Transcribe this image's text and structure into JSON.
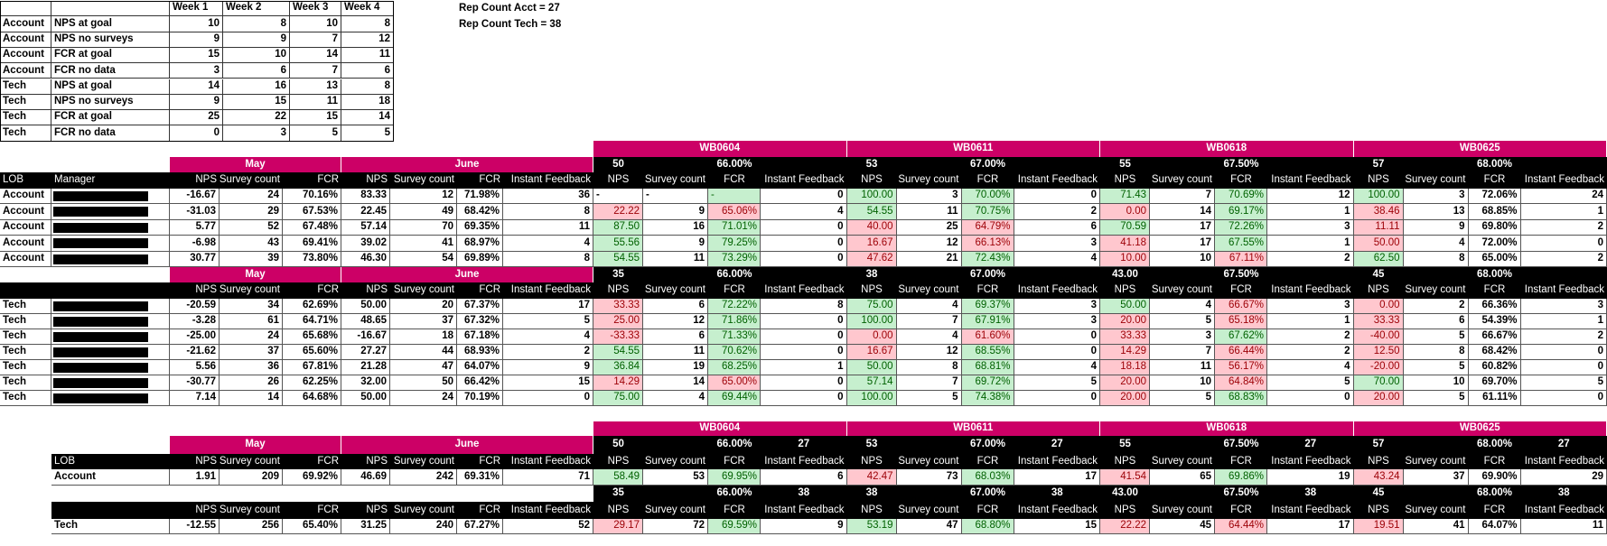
{
  "colors": {
    "header_pink": "#cc0066",
    "good_fill": "#c6efce",
    "good_text": "#006100",
    "bad_fill": "#ffc7ce",
    "bad_text": "#9c0006"
  },
  "top_table": {
    "headers": [
      "",
      "",
      "Week 1",
      "Week 2",
      "Week 3",
      "Week 4"
    ],
    "rows": [
      {
        "lob": "Account",
        "metric": "NPS at goal",
        "values": [
          "10",
          "8",
          "10",
          "8"
        ]
      },
      {
        "lob": "Account",
        "metric": "NPS no surveys",
        "values": [
          "9",
          "9",
          "7",
          "12"
        ]
      },
      {
        "lob": "Account",
        "metric": "FCR at goal",
        "values": [
          "15",
          "10",
          "14",
          "11"
        ]
      },
      {
        "lob": "Account",
        "metric": "FCR no data",
        "values": [
          "3",
          "6",
          "7",
          "6"
        ]
      },
      {
        "lob": "Tech",
        "metric": "NPS at goal",
        "values": [
          "14",
          "16",
          "13",
          "8"
        ]
      },
      {
        "lob": "Tech",
        "metric": "NPS no surveys",
        "values": [
          "9",
          "15",
          "11",
          "18"
        ]
      },
      {
        "lob": "Tech",
        "metric": "FCR at goal",
        "values": [
          "25",
          "22",
          "15",
          "14"
        ]
      },
      {
        "lob": "Tech",
        "metric": "FCR no data",
        "values": [
          "0",
          "3",
          "5",
          "5"
        ]
      }
    ]
  },
  "rep_counts": [
    "Rep Count Acct = 27",
    "Rep Count Tech = 38"
  ],
  "months": [
    "May",
    "June"
  ],
  "weeks": [
    "WB0604",
    "WB0611",
    "WB0618",
    "WB0625"
  ],
  "labels": {
    "lob": "LOB",
    "manager": "Manager",
    "nps": "NPS",
    "survey": "Survey count",
    "fcr": "FCR",
    "instant": "Instant Feedback"
  },
  "account_section": {
    "targets": [
      {
        "nps": "50",
        "fcr": "66.00%"
      },
      {
        "nps": "53",
        "fcr": "67.00%"
      },
      {
        "nps": "55",
        "fcr": "67.50%"
      },
      {
        "nps": "57",
        "fcr": "68.00%"
      }
    ],
    "rows": [
      {
        "lob": "Account",
        "may": {
          "nps": "-16.67",
          "survey": "24",
          "fcr": "70.16%"
        },
        "june": {
          "nps": "83.33",
          "survey": "12",
          "fcr": "71.98%",
          "instant": "36"
        },
        "weeks": [
          {
            "nps": "-",
            "nps_flag": "",
            "survey": "-",
            "fcr": "-",
            "fcr_flag": "green",
            "instant": "0"
          },
          {
            "nps": "100.00",
            "nps_flag": "green",
            "survey": "3",
            "fcr": "70.00%",
            "fcr_flag": "green",
            "instant": "0"
          },
          {
            "nps": "71.43",
            "nps_flag": "green",
            "survey": "7",
            "fcr": "70.69%",
            "fcr_flag": "green",
            "instant": "12"
          },
          {
            "nps": "100.00",
            "nps_flag": "green",
            "survey": "3",
            "fcr": "72.06%",
            "fcr_flag": "",
            "instant": "24"
          }
        ]
      },
      {
        "lob": "Account",
        "may": {
          "nps": "-31.03",
          "survey": "29",
          "fcr": "67.53%"
        },
        "june": {
          "nps": "22.45",
          "survey": "49",
          "fcr": "68.42%",
          "instant": "8"
        },
        "weeks": [
          {
            "nps": "22.22",
            "nps_flag": "red",
            "survey": "9",
            "fcr": "65.06%",
            "fcr_flag": "red",
            "instant": "4"
          },
          {
            "nps": "54.55",
            "nps_flag": "green",
            "survey": "11",
            "fcr": "70.75%",
            "fcr_flag": "green",
            "instant": "2"
          },
          {
            "nps": "0.00",
            "nps_flag": "red",
            "survey": "14",
            "fcr": "69.17%",
            "fcr_flag": "green",
            "instant": "1"
          },
          {
            "nps": "38.46",
            "nps_flag": "red",
            "survey": "13",
            "fcr": "68.85%",
            "fcr_flag": "",
            "instant": "1"
          }
        ]
      },
      {
        "lob": "Account",
        "may": {
          "nps": "5.77",
          "survey": "52",
          "fcr": "67.48%"
        },
        "june": {
          "nps": "57.14",
          "survey": "70",
          "fcr": "69.35%",
          "instant": "11"
        },
        "weeks": [
          {
            "nps": "87.50",
            "nps_flag": "green",
            "survey": "16",
            "fcr": "71.01%",
            "fcr_flag": "green",
            "instant": "0"
          },
          {
            "nps": "40.00",
            "nps_flag": "red",
            "survey": "25",
            "fcr": "64.79%",
            "fcr_flag": "red",
            "instant": "6"
          },
          {
            "nps": "70.59",
            "nps_flag": "green",
            "survey": "17",
            "fcr": "72.26%",
            "fcr_flag": "green",
            "instant": "3"
          },
          {
            "nps": "11.11",
            "nps_flag": "red",
            "survey": "9",
            "fcr": "69.80%",
            "fcr_flag": "",
            "instant": "2"
          }
        ]
      },
      {
        "lob": "Account",
        "may": {
          "nps": "-6.98",
          "survey": "43",
          "fcr": "69.41%"
        },
        "june": {
          "nps": "39.02",
          "survey": "41",
          "fcr": "68.97%",
          "instant": "4"
        },
        "weeks": [
          {
            "nps": "55.56",
            "nps_flag": "green",
            "survey": "9",
            "fcr": "79.25%",
            "fcr_flag": "green",
            "instant": "0"
          },
          {
            "nps": "16.67",
            "nps_flag": "red",
            "survey": "12",
            "fcr": "66.13%",
            "fcr_flag": "red",
            "instant": "3"
          },
          {
            "nps": "41.18",
            "nps_flag": "red",
            "survey": "17",
            "fcr": "67.55%",
            "fcr_flag": "green",
            "instant": "1"
          },
          {
            "nps": "50.00",
            "nps_flag": "red",
            "survey": "4",
            "fcr": "72.00%",
            "fcr_flag": "",
            "instant": "0"
          }
        ]
      },
      {
        "lob": "Account",
        "may": {
          "nps": "30.77",
          "survey": "39",
          "fcr": "73.80%"
        },
        "june": {
          "nps": "46.30",
          "survey": "54",
          "fcr": "69.89%",
          "instant": "8"
        },
        "weeks": [
          {
            "nps": "54.55",
            "nps_flag": "green",
            "survey": "11",
            "fcr": "73.29%",
            "fcr_flag": "green",
            "instant": "0"
          },
          {
            "nps": "47.62",
            "nps_flag": "red",
            "survey": "21",
            "fcr": "72.43%",
            "fcr_flag": "green",
            "instant": "4"
          },
          {
            "nps": "10.00",
            "nps_flag": "red",
            "survey": "10",
            "fcr": "67.11%",
            "fcr_flag": "red",
            "instant": "2"
          },
          {
            "nps": "62.50",
            "nps_flag": "green",
            "survey": "8",
            "fcr": "65.00%",
            "fcr_flag": "",
            "instant": "2"
          }
        ]
      }
    ]
  },
  "tech_section": {
    "targets": [
      {
        "nps": "35",
        "fcr": "66.00%"
      },
      {
        "nps": "38",
        "fcr": "67.00%"
      },
      {
        "nps": "43.00",
        "fcr": "67.50%"
      },
      {
        "nps": "45",
        "fcr": "68.00%"
      }
    ],
    "rows": [
      {
        "lob": "Tech",
        "may": {
          "nps": "-20.59",
          "survey": "34",
          "fcr": "62.69%"
        },
        "june": {
          "nps": "50.00",
          "survey": "20",
          "fcr": "67.37%",
          "instant": "17"
        },
        "weeks": [
          {
            "nps": "33.33",
            "nps_flag": "red",
            "survey": "6",
            "fcr": "72.22%",
            "fcr_flag": "green",
            "instant": "8"
          },
          {
            "nps": "75.00",
            "nps_flag": "green",
            "survey": "4",
            "fcr": "69.37%",
            "fcr_flag": "green",
            "instant": "3"
          },
          {
            "nps": "50.00",
            "nps_flag": "green",
            "survey": "4",
            "fcr": "66.67%",
            "fcr_flag": "red",
            "instant": "3"
          },
          {
            "nps": "0.00",
            "nps_flag": "red",
            "survey": "2",
            "fcr": "66.36%",
            "fcr_flag": "",
            "instant": "3"
          }
        ]
      },
      {
        "lob": "Tech",
        "may": {
          "nps": "-3.28",
          "survey": "61",
          "fcr": "64.71%"
        },
        "june": {
          "nps": "48.65",
          "survey": "37",
          "fcr": "67.32%",
          "instant": "5"
        },
        "weeks": [
          {
            "nps": "25.00",
            "nps_flag": "red",
            "survey": "12",
            "fcr": "71.86%",
            "fcr_flag": "green",
            "instant": "0"
          },
          {
            "nps": "100.00",
            "nps_flag": "green",
            "survey": "7",
            "fcr": "67.91%",
            "fcr_flag": "green",
            "instant": "3"
          },
          {
            "nps": "20.00",
            "nps_flag": "red",
            "survey": "5",
            "fcr": "65.18%",
            "fcr_flag": "red",
            "instant": "1"
          },
          {
            "nps": "33.33",
            "nps_flag": "red",
            "survey": "6",
            "fcr": "54.39%",
            "fcr_flag": "",
            "instant": "1"
          }
        ]
      },
      {
        "lob": "Tech",
        "may": {
          "nps": "-25.00",
          "survey": "24",
          "fcr": "65.68%"
        },
        "june": {
          "nps": "-16.67",
          "survey": "18",
          "fcr": "67.18%",
          "instant": "4"
        },
        "weeks": [
          {
            "nps": "-33.33",
            "nps_flag": "red",
            "survey": "6",
            "fcr": "71.33%",
            "fcr_flag": "green",
            "instant": "0"
          },
          {
            "nps": "0.00",
            "nps_flag": "red",
            "survey": "4",
            "fcr": "61.60%",
            "fcr_flag": "red",
            "instant": "0"
          },
          {
            "nps": "33.33",
            "nps_flag": "red",
            "survey": "3",
            "fcr": "67.62%",
            "fcr_flag": "green",
            "instant": "2"
          },
          {
            "nps": "-40.00",
            "nps_flag": "red",
            "survey": "5",
            "fcr": "66.67%",
            "fcr_flag": "",
            "instant": "2"
          }
        ]
      },
      {
        "lob": "Tech",
        "may": {
          "nps": "-21.62",
          "survey": "37",
          "fcr": "65.60%"
        },
        "june": {
          "nps": "27.27",
          "survey": "44",
          "fcr": "68.93%",
          "instant": "2"
        },
        "weeks": [
          {
            "nps": "54.55",
            "nps_flag": "green",
            "survey": "11",
            "fcr": "70.62%",
            "fcr_flag": "green",
            "instant": "0"
          },
          {
            "nps": "16.67",
            "nps_flag": "red",
            "survey": "12",
            "fcr": "68.55%",
            "fcr_flag": "green",
            "instant": "0"
          },
          {
            "nps": "14.29",
            "nps_flag": "red",
            "survey": "7",
            "fcr": "66.44%",
            "fcr_flag": "red",
            "instant": "2"
          },
          {
            "nps": "12.50",
            "nps_flag": "red",
            "survey": "8",
            "fcr": "68.42%",
            "fcr_flag": "",
            "instant": "0"
          }
        ]
      },
      {
        "lob": "Tech",
        "may": {
          "nps": "5.56",
          "survey": "36",
          "fcr": "67.81%"
        },
        "june": {
          "nps": "21.28",
          "survey": "47",
          "fcr": "64.07%",
          "instant": "9"
        },
        "weeks": [
          {
            "nps": "36.84",
            "nps_flag": "green",
            "survey": "19",
            "fcr": "68.25%",
            "fcr_flag": "green",
            "instant": "1"
          },
          {
            "nps": "50.00",
            "nps_flag": "green",
            "survey": "8",
            "fcr": "68.81%",
            "fcr_flag": "green",
            "instant": "4"
          },
          {
            "nps": "18.18",
            "nps_flag": "red",
            "survey": "11",
            "fcr": "56.17%",
            "fcr_flag": "red",
            "instant": "4"
          },
          {
            "nps": "-20.00",
            "nps_flag": "red",
            "survey": "5",
            "fcr": "60.82%",
            "fcr_flag": "",
            "instant": "0"
          }
        ]
      },
      {
        "lob": "Tech",
        "may": {
          "nps": "-30.77",
          "survey": "26",
          "fcr": "62.25%"
        },
        "june": {
          "nps": "32.00",
          "survey": "50",
          "fcr": "66.42%",
          "instant": "15"
        },
        "weeks": [
          {
            "nps": "14.29",
            "nps_flag": "red",
            "survey": "14",
            "fcr": "65.00%",
            "fcr_flag": "red",
            "instant": "0"
          },
          {
            "nps": "57.14",
            "nps_flag": "green",
            "survey": "7",
            "fcr": "69.72%",
            "fcr_flag": "green",
            "instant": "5"
          },
          {
            "nps": "20.00",
            "nps_flag": "red",
            "survey": "10",
            "fcr": "64.84%",
            "fcr_flag": "red",
            "instant": "5"
          },
          {
            "nps": "70.00",
            "nps_flag": "green",
            "survey": "10",
            "fcr": "69.70%",
            "fcr_flag": "",
            "instant": "5"
          }
        ]
      },
      {
        "lob": "Tech",
        "may": {
          "nps": "7.14",
          "survey": "14",
          "fcr": "64.68%"
        },
        "june": {
          "nps": "50.00",
          "survey": "24",
          "fcr": "70.19%",
          "instant": "0"
        },
        "weeks": [
          {
            "nps": "75.00",
            "nps_flag": "green",
            "survey": "4",
            "fcr": "69.44%",
            "fcr_flag": "green",
            "instant": "0"
          },
          {
            "nps": "100.00",
            "nps_flag": "green",
            "survey": "5",
            "fcr": "74.38%",
            "fcr_flag": "green",
            "instant": "0"
          },
          {
            "nps": "20.00",
            "nps_flag": "red",
            "survey": "5",
            "fcr": "68.83%",
            "fcr_flag": "green",
            "instant": "0"
          },
          {
            "nps": "20.00",
            "nps_flag": "red",
            "survey": "5",
            "fcr": "61.11%",
            "fcr_flag": "",
            "instant": "0"
          }
        ]
      }
    ]
  },
  "summary": {
    "account": {
      "targets": [
        {
          "nps": "50",
          "fcr": "66.00%",
          "reps": "27"
        },
        {
          "nps": "53",
          "fcr": "67.00%",
          "reps": "27"
        },
        {
          "nps": "55",
          "fcr": "67.50%",
          "reps": "27"
        },
        {
          "nps": "57",
          "fcr": "68.00%",
          "reps": "27"
        }
      ],
      "row": {
        "lob": "Account",
        "may": {
          "nps": "1.91",
          "survey": "209",
          "fcr": "69.92%"
        },
        "june": {
          "nps": "46.69",
          "survey": "242",
          "fcr": "69.31%",
          "instant": "71"
        },
        "weeks": [
          {
            "nps": "58.49",
            "nps_flag": "green",
            "survey": "53",
            "fcr": "69.95%",
            "fcr_flag": "green",
            "instant": "6"
          },
          {
            "nps": "42.47",
            "nps_flag": "red",
            "survey": "73",
            "fcr": "68.03%",
            "fcr_flag": "green",
            "instant": "17"
          },
          {
            "nps": "41.54",
            "nps_flag": "red",
            "survey": "65",
            "fcr": "69.86%",
            "fcr_flag": "green",
            "instant": "19"
          },
          {
            "nps": "43.24",
            "nps_flag": "red",
            "survey": "37",
            "fcr": "69.90%",
            "fcr_flag": "",
            "instant": "29"
          }
        ]
      }
    },
    "tech": {
      "targets": [
        {
          "nps": "35",
          "fcr": "66.00%",
          "reps": "38"
        },
        {
          "nps": "38",
          "fcr": "67.00%",
          "reps": "38"
        },
        {
          "nps": "43.00",
          "fcr": "67.50%",
          "reps": "38"
        },
        {
          "nps": "45",
          "fcr": "68.00%",
          "reps": "38"
        }
      ],
      "row": {
        "lob": "Tech",
        "may": {
          "nps": "-12.55",
          "survey": "256",
          "fcr": "65.40%"
        },
        "june": {
          "nps": "31.25",
          "survey": "240",
          "fcr": "67.27%",
          "instant": "52"
        },
        "weeks": [
          {
            "nps": "29.17",
            "nps_flag": "red",
            "survey": "72",
            "fcr": "69.59%",
            "fcr_flag": "green",
            "instant": "9"
          },
          {
            "nps": "53.19",
            "nps_flag": "green",
            "survey": "47",
            "fcr": "68.80%",
            "fcr_flag": "green",
            "instant": "15"
          },
          {
            "nps": "22.22",
            "nps_flag": "red",
            "survey": "45",
            "fcr": "64.44%",
            "fcr_flag": "red",
            "instant": "17"
          },
          {
            "nps": "19.51",
            "nps_flag": "red",
            "survey": "41",
            "fcr": "64.07%",
            "fcr_flag": "",
            "instant": "11"
          }
        ]
      }
    }
  }
}
